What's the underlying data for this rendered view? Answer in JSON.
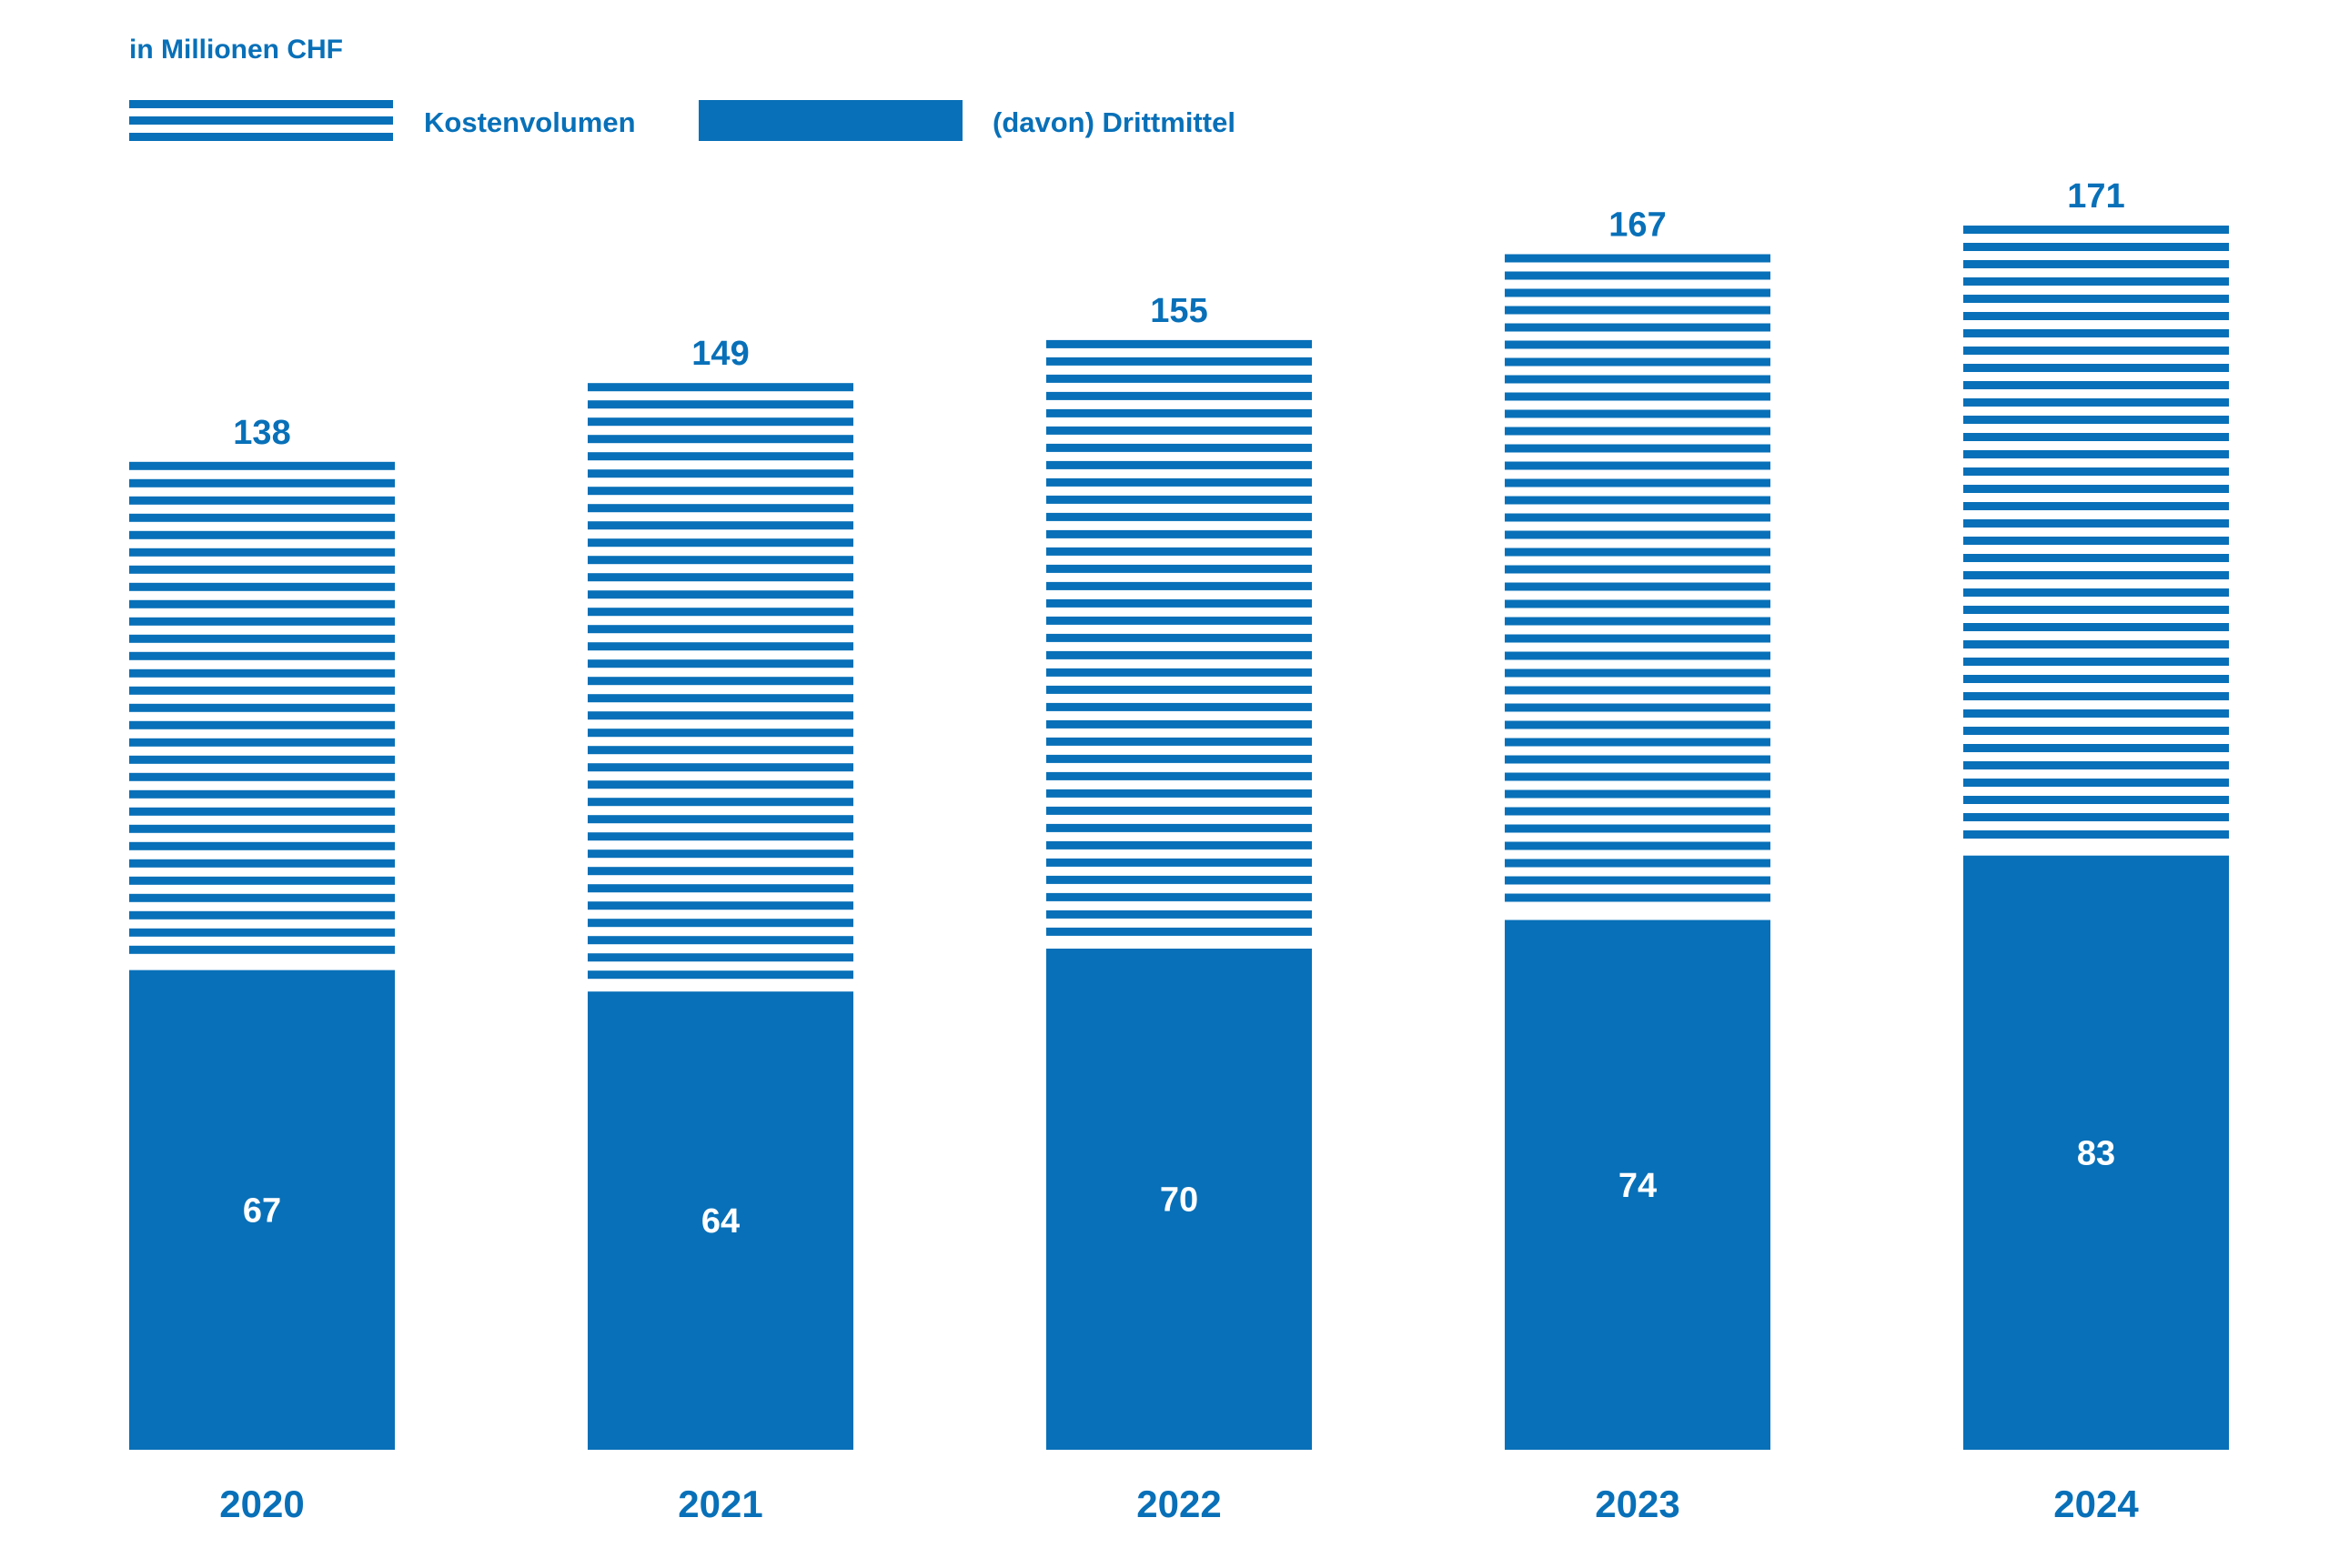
{
  "chart_data": {
    "type": "bar",
    "unit_label": "in Millionen CHF",
    "categories": [
      "2020",
      "2021",
      "2022",
      "2023",
      "2024"
    ],
    "series": [
      {
        "name": "Kostenvolumen",
        "values": [
          138,
          149,
          155,
          167,
          171
        ],
        "pattern": "horizontal-stripes"
      },
      {
        "name": "(davon) Drittmittel",
        "values": [
          67,
          64,
          70,
          74,
          83
        ],
        "pattern": "solid"
      }
    ],
    "legend_position": "top-left",
    "grid": false,
    "ylim": [
      0,
      171
    ],
    "color": "#0870b8"
  }
}
